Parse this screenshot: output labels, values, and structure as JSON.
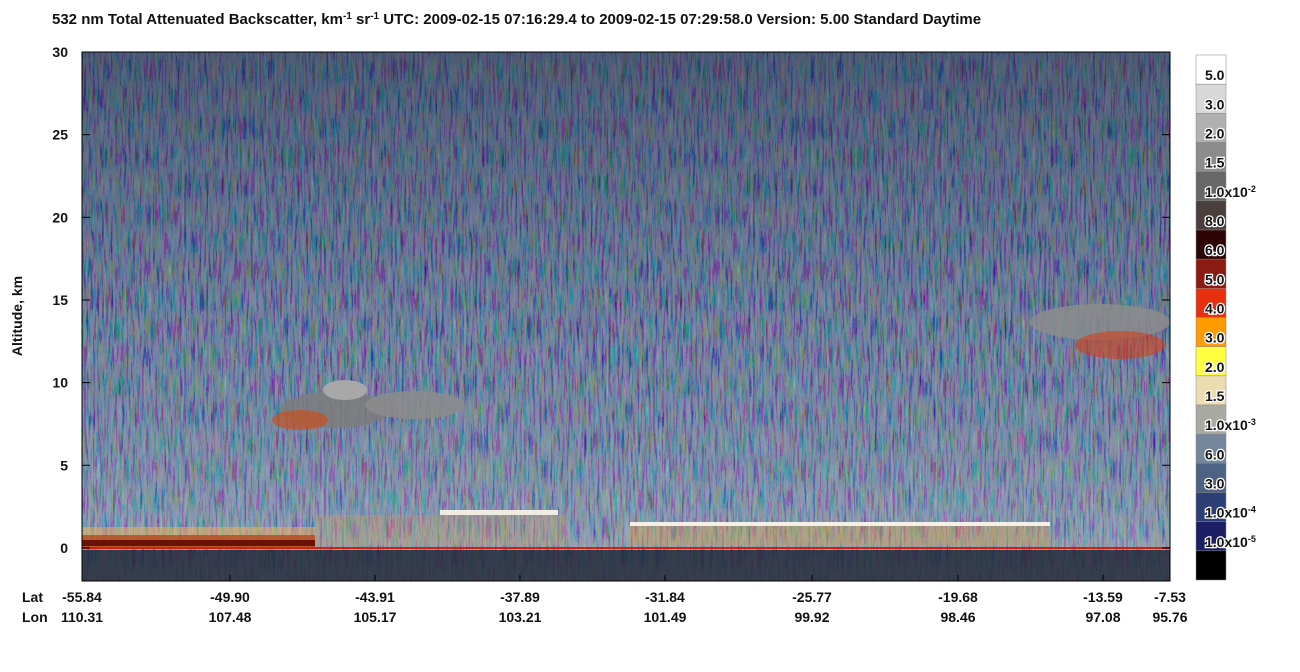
{
  "chart_data": {
    "type": "heatmap",
    "title": [
      "532 nm Total Attenuated Backscatter, km",
      "-1",
      " sr",
      "-1",
      "    UTC:  2009-02-15 07:16:29.4  to  2009-02-15 07:29:58.0     Version: 5.00  Standard  Daytime"
    ],
    "ylabel": "Altitude, km",
    "ylim": [
      -2,
      30
    ],
    "yticks": [
      0,
      5,
      10,
      15,
      20,
      25,
      30
    ],
    "x_row_labels": [
      "Lat",
      "Lon"
    ],
    "lat": [
      "-55.84",
      "-49.90",
      "-43.91",
      "-37.89",
      "-31.84",
      "-25.77",
      "-19.68",
      "-13.59",
      "-7.53"
    ],
    "lon": [
      "110.31",
      "107.48",
      "105.17",
      "103.21",
      "101.49",
      "99.92",
      "98.46",
      "97.08",
      "95.76"
    ],
    "colorbar": {
      "colors": [
        "#ffffff",
        "#d8d8d8",
        "#b0b0b0",
        "#8c8c8c",
        "#676767",
        "#4a3f3c",
        "#2e0505",
        "#8b1a12",
        "#e83010",
        "#ff9a00",
        "#ffff40",
        "#ecdcb0",
        "#a9aaa2",
        "#74879a",
        "#4e6283",
        "#2e3f75",
        "#1c1f63",
        "#000000"
      ],
      "labels": [
        "5.0",
        "3.0",
        "2.0",
        "1.5",
        [
          "1.0x10",
          "-2"
        ],
        "8.0",
        "6.0",
        "5.0",
        "4.0",
        "3.0",
        "2.0",
        "1.5",
        [
          "1.0x10",
          "-3"
        ],
        "6.0",
        "3.0",
        [
          "1.0x10",
          "-4"
        ],
        [
          "1.0x10",
          "-5"
        ]
      ]
    }
  }
}
